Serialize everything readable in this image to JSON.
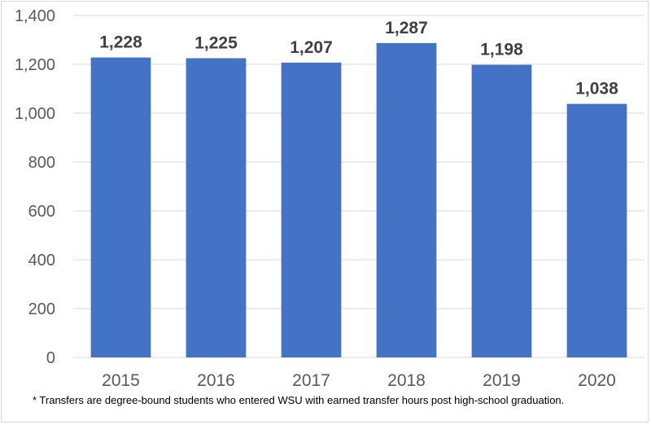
{
  "chart_data": {
    "type": "bar",
    "title": "",
    "xlabel": "",
    "ylabel": "",
    "categories": [
      "2015",
      "2016",
      "2017",
      "2018",
      "2019",
      "2020"
    ],
    "values": [
      1228,
      1225,
      1207,
      1287,
      1198,
      1038
    ],
    "value_labels": [
      "1,228",
      "1,225",
      "1,207",
      "1,287",
      "1,198",
      "1,038"
    ],
    "ylim": [
      0,
      1400
    ],
    "yticks": [
      0,
      200,
      400,
      600,
      800,
      1000,
      1200,
      1400
    ],
    "ytick_labels": [
      "0",
      "200",
      "400",
      "600",
      "800",
      "1,000",
      "1,200",
      "1,400"
    ],
    "grid": true,
    "legend": "none",
    "colors": {
      "bar": "#4472C4",
      "grid": "#d9d9d9",
      "text": "#595959",
      "label": "#404040"
    }
  },
  "footnote": "* Transfers are degree-bound students who entered WSU with earned transfer hours post high-school graduation."
}
